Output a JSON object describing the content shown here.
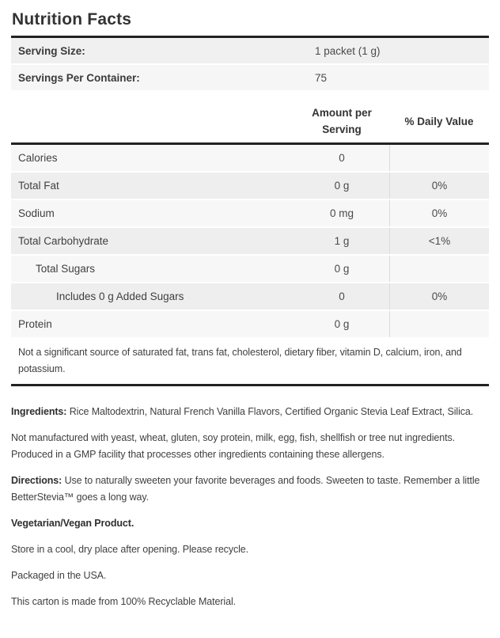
{
  "page": {
    "title": "Nutrition Facts"
  },
  "serving_info": {
    "rows": [
      {
        "label": "Serving Size:",
        "value": "1 packet (1 g)"
      },
      {
        "label": "Servings Per Container:",
        "value": "75"
      }
    ]
  },
  "nutrition_table": {
    "headers": {
      "amount": "Amount per Serving",
      "daily_value": "% Daily Value"
    },
    "rows": [
      {
        "label": "Calories",
        "amount": "0",
        "daily_value": ""
      },
      {
        "label": "Total Fat",
        "amount": "0 g",
        "daily_value": "0%"
      },
      {
        "label": "Sodium",
        "amount": "0 mg",
        "daily_value": "0%"
      },
      {
        "label": "Total Carbohydrate",
        "amount": "1 g",
        "daily_value": "<1%"
      },
      {
        "label": "Total Sugars",
        "amount": "0 g",
        "daily_value": ""
      },
      {
        "label": "Includes 0 g Added Sugars",
        "amount": "0",
        "daily_value": "0%"
      },
      {
        "label": "Protein",
        "amount": "0 g",
        "daily_value": ""
      }
    ],
    "footnote": "Not a significant source of saturated fat, trans fat, cholesterol, dietary fiber, vitamin D, calcium, iron, and potassium."
  },
  "details": {
    "paragraphs": [
      {
        "lead": "Ingredients: ",
        "text": "Rice Maltodextrin, Natural French Vanilla Flavors, Certified Organic Stevia Leaf Extract, Silica."
      },
      {
        "lead": "",
        "text": "Not manufactured with yeast, wheat, gluten, soy protein, milk, egg, fish, shellfish or tree nut ingredients. Produced in a GMP facility that processes other ingredients containing these allergens."
      },
      {
        "lead": "Directions: ",
        "text": "Use to naturally sweeten your favorite beverages and foods. Sweeten to taste. Remember a little BetterStevia™ goes a long way."
      },
      {
        "lead": "Vegetarian/Vegan Product.",
        "text": ""
      },
      {
        "lead": "",
        "text": "Store in a cool, dry place after opening. Please recycle."
      },
      {
        "lead": "",
        "text": "Packaged in the USA."
      },
      {
        "lead": "",
        "text": "This carton is made from 100% Recyclable Material."
      }
    ]
  },
  "colors": {
    "heavy_border": "#222222",
    "row_light": "#f7f7f7",
    "row_dark": "#eeeeee",
    "text": "#3f3f3f"
  }
}
